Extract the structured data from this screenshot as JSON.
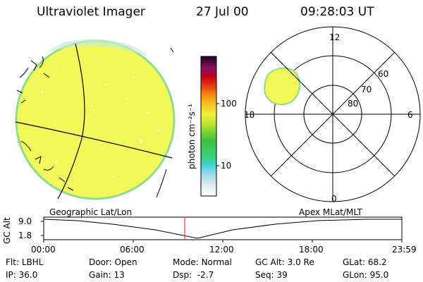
{
  "header": {
    "instrument": "Ultraviolet Imager",
    "date": "27 Jul 00",
    "time": "09:28:03 UT"
  },
  "colorbar": {
    "unit_label": "photon cm⁻²s⁻¹",
    "ticks": [
      "100",
      "10"
    ]
  },
  "polar_plot": {
    "mlt_labels": [
      "12",
      "6",
      "0",
      "18"
    ],
    "lat_labels": [
      "60",
      "70",
      "80"
    ]
  },
  "timeline": {
    "left_label": "Geographic Lat/Lon",
    "right_label": "Apex MLat/MLT",
    "axis_title": "GC Alt",
    "y_ticks": [
      "9.0",
      "1.8"
    ],
    "x_ticks": [
      "00:00",
      "06:00",
      "12:00",
      "18:00",
      "23:59"
    ],
    "cursor_time": "09:28"
  },
  "info": [
    [
      {
        "k": "Flt:",
        "v": "LBHL"
      },
      {
        "k": "Door:",
        "v": "Open"
      },
      {
        "k": "Mode:",
        "v": "Normal"
      },
      {
        "k": "GC Alt:",
        "v": "3.0 Re"
      },
      {
        "k": "GLat:",
        "v": "68.2"
      }
    ],
    [
      {
        "k": "IP:",
        "v": "36.0"
      },
      {
        "k": "Gain:",
        "v": "13"
      },
      {
        "k": "Dsp:",
        "v": "-2.7"
      },
      {
        "k": "Seq:",
        "v": "39"
      },
      {
        "k": "GLon:",
        "v": "95.0"
      }
    ]
  ],
  "colors": {
    "fill": "#f2f75a",
    "limb": "#8fdc8f",
    "cursor": "#cc2020"
  }
}
